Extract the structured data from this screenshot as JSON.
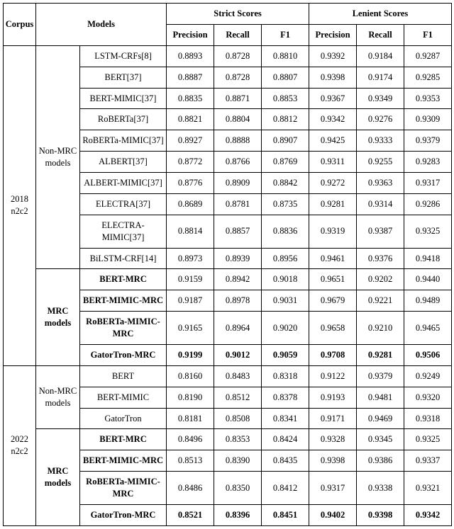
{
  "header": {
    "corpus": "Corpus",
    "models": "Models",
    "strict": "Strict Scores",
    "lenient": "Lenient Scores",
    "precision": "Precision",
    "recall": "Recall",
    "f1": "F1"
  },
  "groups": [
    {
      "corpus": "2018 n2c2",
      "cats": [
        {
          "label": "Non-MRC models",
          "bold": false,
          "rows": [
            {
              "name": "LSTM-CRFs[8]",
              "bold": false,
              "v": [
                "0.8893",
                "0.8728",
                "0.8810",
                "0.9392",
                "0.9184",
                "0.9287"
              ]
            },
            {
              "name": "BERT[37]",
              "bold": false,
              "v": [
                "0.8887",
                "0.8728",
                "0.8807",
                "0.9398",
                "0.9174",
                "0.9285"
              ]
            },
            {
              "name": "BERT-MIMIC[37]",
              "bold": false,
              "v": [
                "0.8835",
                "0.8871",
                "0.8853",
                "0.9367",
                "0.9349",
                "0.9353"
              ]
            },
            {
              "name": "RoBERTa[37]",
              "bold": false,
              "v": [
                "0.8821",
                "0.8804",
                "0.8812",
                "0.9342",
                "0.9276",
                "0.9309"
              ]
            },
            {
              "name": "RoBERTa-MIMIC[37]",
              "bold": false,
              "v": [
                "0.8927",
                "0.8888",
                "0.8907",
                "0.9425",
                "0.9333",
                "0.9379"
              ]
            },
            {
              "name": "ALBERT[37]",
              "bold": false,
              "v": [
                "0.8772",
                "0.8766",
                "0.8769",
                "0.9311",
                "0.9255",
                "0.9283"
              ]
            },
            {
              "name": "ALBERT-MIMIC[37]",
              "bold": false,
              "v": [
                "0.8776",
                "0.8909",
                "0.8842",
                "0.9272",
                "0.9363",
                "0.9317"
              ]
            },
            {
              "name": "ELECTRA[37]",
              "bold": false,
              "v": [
                "0.8689",
                "0.8781",
                "0.8735",
                "0.9281",
                "0.9314",
                "0.9286"
              ]
            },
            {
              "name": "ELECTRA-MIMIC[37]",
              "bold": false,
              "v": [
                "0.8814",
                "0.8857",
                "0.8836",
                "0.9319",
                "0.9387",
                "0.9325"
              ]
            },
            {
              "name": "BiLSTM-CRF[14]",
              "bold": false,
              "v": [
                "0.8973",
                "0.8939",
                "0.8956",
                "0.9461",
                "0.9376",
                "0.9418"
              ]
            }
          ]
        },
        {
          "label": "MRC models",
          "bold": true,
          "rows": [
            {
              "name": "BERT-MRC",
              "bold": true,
              "v": [
                "0.9159",
                "0.8942",
                "0.9018",
                "0.9651",
                "0.9202",
                "0.9440"
              ],
              "vbold": false
            },
            {
              "name": "BERT-MIMIC-MRC",
              "bold": true,
              "v": [
                "0.9187",
                "0.8978",
                "0.9031",
                "0.9679",
                "0.9221",
                "0.9489"
              ],
              "vbold": false
            },
            {
              "name": "RoBERTa-MIMIC-MRC",
              "bold": true,
              "v": [
                "0.9165",
                "0.8964",
                "0.9020",
                "0.9658",
                "0.9210",
                "0.9465"
              ],
              "vbold": false
            },
            {
              "name": "GatorTron-MRC",
              "bold": true,
              "v": [
                "0.9199",
                "0.9012",
                "0.9059",
                "0.9708",
                "0.9281",
                "0.9506"
              ],
              "vbold": true
            }
          ]
        }
      ]
    },
    {
      "corpus": "2022 n2c2",
      "cats": [
        {
          "label": "Non-MRC models",
          "bold": false,
          "rows": [
            {
              "name": "BERT",
              "bold": false,
              "v": [
                "0.8160",
                "0.8483",
                "0.8318",
                "0.9122",
                "0.9379",
                "0.9249"
              ]
            },
            {
              "name": "BERT-MIMIC",
              "bold": false,
              "v": [
                "0.8190",
                "0.8512",
                "0.8378",
                "0.9193",
                "0.9481",
                "0.9320"
              ]
            },
            {
              "name": "GatorTron",
              "bold": false,
              "v": [
                "0.8181",
                "0.8508",
                "0.8341",
                "0.9171",
                "0.9469",
                "0.9318"
              ]
            }
          ]
        },
        {
          "label": "MRC models",
          "bold": true,
          "rows": [
            {
              "name": "BERT-MRC",
              "bold": true,
              "v": [
                "0.8496",
                "0.8353",
                "0.8424",
                "0.9328",
                "0.9345",
                "0.9325"
              ],
              "vbold": false
            },
            {
              "name": "BERT-MIMIC-MRC",
              "bold": true,
              "v": [
                "0.8513",
                "0.8390",
                "0.8435",
                "0.9398",
                "0.9386",
                "0.9337"
              ],
              "vbold": false
            },
            {
              "name": "RoBERTa-MIMIC-MRC",
              "bold": true,
              "v": [
                "0.8486",
                "0.8350",
                "0.8412",
                "0.9317",
                "0.9338",
                "0.9321"
              ],
              "vbold": false
            },
            {
              "name": "GatorTron-MRC",
              "bold": true,
              "v": [
                "0.8521",
                "0.8396",
                "0.8451",
                "0.9402",
                "0.9398",
                "0.9342"
              ],
              "vbold": true
            }
          ]
        }
      ]
    }
  ]
}
